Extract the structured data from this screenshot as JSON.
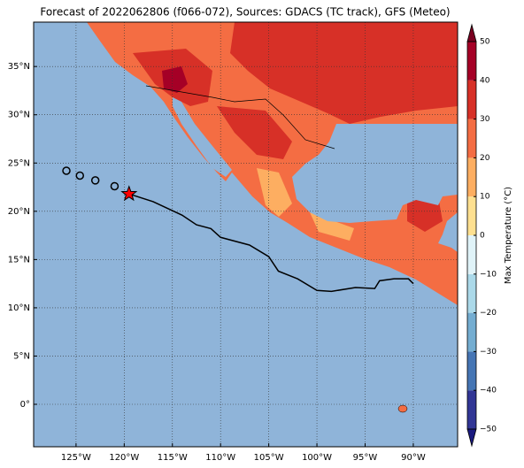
{
  "chart_data": {
    "type": "map",
    "title": "Forecast of 2022062806 (f066-072), Sources: GDACS (TC track), GFS (Meteo)",
    "xlim": [
      -129.4,
      -85.4
    ],
    "ylim": [
      -4.4,
      39.6
    ],
    "xticks": [
      {
        "value": -125,
        "label": "125°W"
      },
      {
        "value": -120,
        "label": "120°W"
      },
      {
        "value": -115,
        "label": "115°W"
      },
      {
        "value": -110,
        "label": "110°W"
      },
      {
        "value": -105,
        "label": "105°W"
      },
      {
        "value": -100,
        "label": "100°W"
      },
      {
        "value": -95,
        "label": "95°W"
      },
      {
        "value": -90,
        "label": "90°W"
      }
    ],
    "yticks": [
      {
        "value": 35,
        "label": "35°N"
      },
      {
        "value": 30,
        "label": "30°N"
      },
      {
        "value": 25,
        "label": "25°N"
      },
      {
        "value": 20,
        "label": "20°N"
      },
      {
        "value": 15,
        "label": "15°N"
      },
      {
        "value": 10,
        "label": "10°N"
      },
      {
        "value": 5,
        "label": "5°N"
      },
      {
        "value": 0,
        "label": "0°"
      }
    ],
    "grid": true,
    "track": {
      "lon": [
        -119.5,
        -117,
        -114,
        -112.5,
        -111,
        -110,
        -107,
        -105,
        -104,
        -102,
        -100,
        -98.5,
        -96,
        -94,
        -93.5,
        -92,
        -90.5,
        -90
      ],
      "lat": [
        21.8,
        21,
        19.6,
        18.6,
        18.2,
        17.3,
        16.5,
        15.3,
        13.8,
        13,
        11.8,
        11.7,
        12.1,
        12,
        12.8,
        13,
        13,
        12.5
      ],
      "color": "#000000"
    },
    "past_positions": {
      "lon": [
        -126,
        -124.6,
        -123,
        -121
      ],
      "lat": [
        24.2,
        23.7,
        23.2,
        22.6
      ],
      "color": "#000000"
    },
    "current_position": {
      "lon": -119.5,
      "lat": 21.8,
      "color": "#ff0000"
    },
    "colorbar": {
      "label": "Max Temperature (°C)",
      "levels": [
        -50,
        -40,
        -30,
        -20,
        -10,
        0,
        10,
        20,
        30,
        40,
        50
      ],
      "colors": [
        "#313695",
        "#4575b4",
        "#74add1",
        "#abd9e9",
        "#e0f3f8",
        "#fee090",
        "#fdae61",
        "#f46d43",
        "#d73027",
        "#a50026"
      ],
      "under_color": "#1a1a80",
      "over_color": "#7a0020",
      "ticks": [
        50,
        40,
        30,
        20,
        10,
        0,
        {
          "value": -10,
          "label": "−10"
        },
        {
          "value": -20,
          "label": "−20"
        },
        {
          "value": -30,
          "label": "−30"
        },
        {
          "value": -40,
          "label": "−40"
        },
        {
          "value": -50,
          "label": "−50"
        }
      ]
    }
  }
}
